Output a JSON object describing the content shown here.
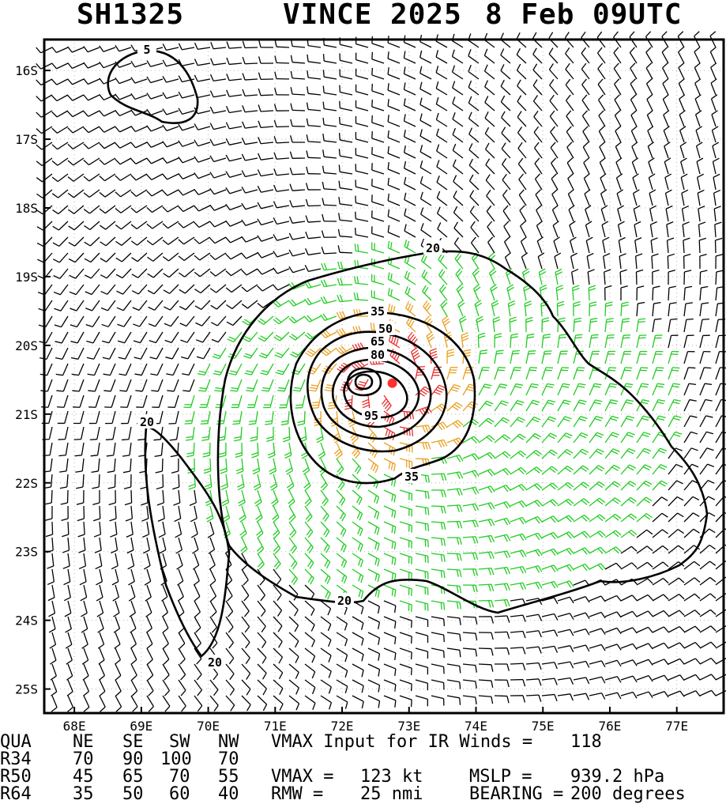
{
  "header": {
    "storm_id": "SH1325",
    "storm_name_year": "VINCE 2025",
    "datetime": "8 Feb 09UTC"
  },
  "chart_data": {
    "type": "contour",
    "description_axes": "longitude/latitude wind analysis",
    "x_ticks": [
      "68E",
      "69E",
      "70E",
      "71E",
      "72E",
      "73E",
      "74E",
      "75E",
      "76E",
      "77E"
    ],
    "y_ticks": [
      "16S",
      "17S",
      "18S",
      "19S",
      "20S",
      "21S",
      "22S",
      "23S",
      "24S",
      "25S"
    ],
    "xlim": [
      67.55,
      77.7
    ],
    "ylim": [
      -25.35,
      -15.55
    ],
    "grid": true,
    "center": {
      "lon": 72.75,
      "lat": -20.55
    },
    "contour_labels": [
      "5",
      "20",
      "20",
      "20",
      "20",
      "35",
      "35",
      "50",
      "65",
      "80",
      "95"
    ],
    "wind_colors": {
      "lt34": "#000000",
      "34to49": "#22cc22",
      "50to63": "#e8a020",
      "64plus": "#e83030"
    },
    "center_color": "#ff3030"
  },
  "table": {
    "headers": [
      "QUA",
      "NE",
      "SE",
      "SW",
      "NW"
    ],
    "rows": [
      {
        "label": "R34",
        "ne": "70",
        "se": "90",
        "sw": "100",
        "nw": "70"
      },
      {
        "label": "R50",
        "ne": "45",
        "se": "65",
        "sw": "70",
        "nw": "55"
      },
      {
        "label": "R64",
        "ne": "35",
        "se": "50",
        "sw": "60",
        "nw": "40"
      }
    ]
  },
  "info": {
    "vmax_input_label": "VMAX Input for IR Winds =",
    "vmax_input_value": "118",
    "vmax_label": "VMAX =",
    "vmax_value": "123 kt",
    "mslp_label": "MSLP =",
    "mslp_value": "939.2 hPa",
    "rmw_label": "RMW =",
    "rmw_value": "25 nmi",
    "bearing_label": "BEARING =",
    "bearing_value": "200 degrees"
  }
}
